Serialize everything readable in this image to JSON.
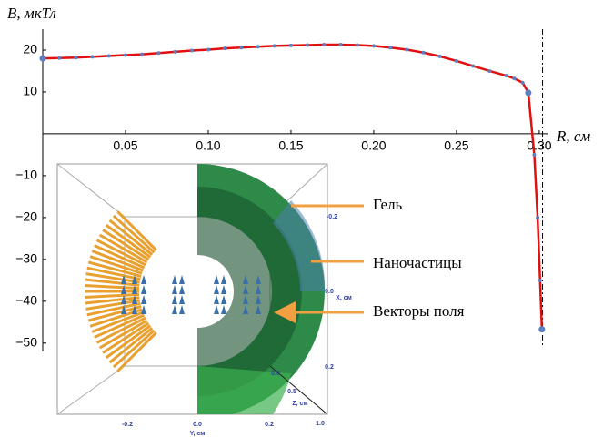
{
  "chart_data": {
    "type": "line",
    "y_label": "B, мкТл",
    "x_label": "R, см",
    "x": [
      0,
      0.01,
      0.02,
      0.03,
      0.04,
      0.05,
      0.06,
      0.07,
      0.08,
      0.09,
      0.1,
      0.11,
      0.12,
      0.13,
      0.14,
      0.15,
      0.16,
      0.17,
      0.18,
      0.19,
      0.2,
      0.21,
      0.22,
      0.23,
      0.24,
      0.25,
      0.26,
      0.27,
      0.28,
      0.285,
      0.29,
      0.2934,
      0.297,
      0.299,
      0.3005,
      0.3016
    ],
    "series": [
      {
        "color": "#e01010",
        "marker_color": "#5b7fc0",
        "values": [
          18,
          18.1,
          18.2,
          18.4,
          18.6,
          18.8,
          19.0,
          19.3,
          19.6,
          19.9,
          20.1,
          20.4,
          20.6,
          20.8,
          21.0,
          21.1,
          21.2,
          21.3,
          21.3,
          21.2,
          21.0,
          20.6,
          20.1,
          19.4,
          18.5,
          17.4,
          16.2,
          15.0,
          13.9,
          13.2,
          12.2,
          9.8,
          -5,
          -20,
          -35,
          -46.7
        ]
      }
    ],
    "xlim": [
      0,
      0.305
    ],
    "ylim": [
      -52,
      25
    ],
    "xticks": [
      0.05,
      {
        "value": 0.1,
        "label": "0.10"
      },
      0.15,
      {
        "value": 0.2,
        "label": "0.20"
      },
      0.25,
      {
        "value": 0.3,
        "label": "0.30"
      }
    ],
    "yticks": [
      20,
      10,
      {
        "value": -10,
        "label": "−10"
      },
      {
        "value": -20,
        "label": "−20"
      },
      {
        "value": -30,
        "label": "−30"
      },
      {
        "value": -40,
        "label": "−40"
      },
      {
        "value": -50,
        "label": "−50"
      }
    ],
    "vline": 0.302,
    "annotations": [
      "Гель",
      "Наночастицы",
      "Векторы поля"
    ],
    "inset_labels": [
      "-0.2",
      "0.0",
      "0.2",
      "Y, см",
      "-0.2",
      "0.0",
      "X, см",
      "0.2",
      "0.0",
      "0.5",
      "Z, см",
      "1.0"
    ]
  }
}
